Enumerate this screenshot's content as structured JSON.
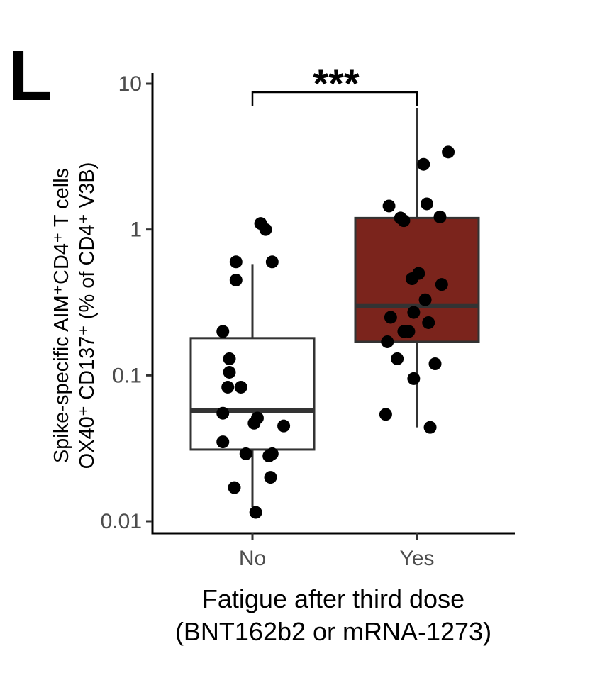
{
  "panel_label": "L",
  "chart_data": {
    "type": "box",
    "scale": "log10",
    "ylim": [
      0.01,
      10
    ],
    "categories": [
      "No",
      "Yes"
    ],
    "ylabel_line1": "Spike-specific AIM⁺CD4⁺ T cells",
    "ylabel_line2": "OX40⁺ CD137⁺ (% of CD4⁺ V3B)",
    "xlabel_line1": "Fatigue after third dose",
    "xlabel_line2": "(BNT162b2 or mRNA-1273)",
    "yticks": [
      {
        "value": 10,
        "label": "10"
      },
      {
        "value": 1,
        "label": "1"
      },
      {
        "value": 0.1,
        "label": "0.1"
      },
      {
        "value": 0.01,
        "label": "0.01"
      }
    ],
    "significance": "***",
    "boxes": [
      {
        "category": "No",
        "fill": "#ffffff",
        "whisker_low": 0.0125,
        "q1": 0.031,
        "median": 0.057,
        "q3": 0.18,
        "whisker_high": 0.58
      },
      {
        "category": "Yes",
        "fill": "#7b241c",
        "whisker_low": 0.044,
        "q1": 0.17,
        "median": 0.3,
        "q3": 1.2,
        "whisker_high": 6.8
      }
    ],
    "points": [
      {
        "category": "No",
        "jitter": 0.05,
        "y": 1.1
      },
      {
        "category": "No",
        "jitter": 0.08,
        "y": 1.0
      },
      {
        "category": "No",
        "jitter": -0.1,
        "y": 0.6
      },
      {
        "category": "No",
        "jitter": 0.12,
        "y": 0.6
      },
      {
        "category": "No",
        "jitter": -0.1,
        "y": 0.45
      },
      {
        "category": "No",
        "jitter": -0.18,
        "y": 0.2
      },
      {
        "category": "No",
        "jitter": -0.14,
        "y": 0.13
      },
      {
        "category": "No",
        "jitter": -0.14,
        "y": 0.105
      },
      {
        "category": "No",
        "jitter": -0.15,
        "y": 0.083
      },
      {
        "category": "No",
        "jitter": -0.07,
        "y": 0.083
      },
      {
        "category": "No",
        "jitter": -0.18,
        "y": 0.055
      },
      {
        "category": "No",
        "jitter": 0.03,
        "y": 0.051
      },
      {
        "category": "No",
        "jitter": 0.01,
        "y": 0.047
      },
      {
        "category": "No",
        "jitter": 0.19,
        "y": 0.045
      },
      {
        "category": "No",
        "jitter": -0.18,
        "y": 0.035
      },
      {
        "category": "No",
        "jitter": -0.04,
        "y": 0.029
      },
      {
        "category": "No",
        "jitter": 0.12,
        "y": 0.029
      },
      {
        "category": "No",
        "jitter": 0.1,
        "y": 0.028
      },
      {
        "category": "No",
        "jitter": 0.11,
        "y": 0.02
      },
      {
        "category": "No",
        "jitter": -0.11,
        "y": 0.017
      },
      {
        "category": "No",
        "jitter": 0.02,
        "y": 0.0115
      },
      {
        "category": "Yes",
        "jitter": 0.19,
        "y": 3.4
      },
      {
        "category": "Yes",
        "jitter": 0.04,
        "y": 2.8
      },
      {
        "category": "Yes",
        "jitter": -0.17,
        "y": 1.45
      },
      {
        "category": "Yes",
        "jitter": 0.06,
        "y": 1.5
      },
      {
        "category": "Yes",
        "jitter": -0.1,
        "y": 1.2
      },
      {
        "category": "Yes",
        "jitter": -0.08,
        "y": 1.15
      },
      {
        "category": "Yes",
        "jitter": 0.14,
        "y": 1.22
      },
      {
        "category": "Yes",
        "jitter": 0.01,
        "y": 0.5
      },
      {
        "category": "Yes",
        "jitter": -0.03,
        "y": 0.46
      },
      {
        "category": "Yes",
        "jitter": 0.15,
        "y": 0.42
      },
      {
        "category": "Yes",
        "jitter": 0.05,
        "y": 0.33
      },
      {
        "category": "Yes",
        "jitter": -0.02,
        "y": 0.27
      },
      {
        "category": "Yes",
        "jitter": -0.16,
        "y": 0.25
      },
      {
        "category": "Yes",
        "jitter": 0.07,
        "y": 0.23
      },
      {
        "category": "Yes",
        "jitter": -0.08,
        "y": 0.2
      },
      {
        "category": "Yes",
        "jitter": -0.05,
        "y": 0.2
      },
      {
        "category": "Yes",
        "jitter": -0.18,
        "y": 0.17
      },
      {
        "category": "Yes",
        "jitter": -0.12,
        "y": 0.13
      },
      {
        "category": "Yes",
        "jitter": 0.11,
        "y": 0.12
      },
      {
        "category": "Yes",
        "jitter": -0.02,
        "y": 0.095
      },
      {
        "category": "Yes",
        "jitter": -0.19,
        "y": 0.054
      },
      {
        "category": "Yes",
        "jitter": 0.08,
        "y": 0.044
      }
    ]
  }
}
